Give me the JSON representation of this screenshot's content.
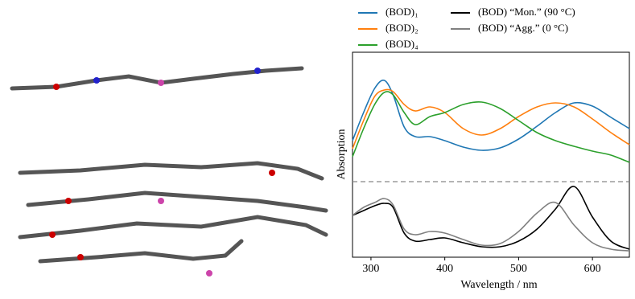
{
  "chart_data": {
    "type": "line",
    "x_label": "Wavelength / nm",
    "y_label": "Absorption",
    "x": [
      275,
      290,
      305,
      318,
      330,
      345,
      360,
      380,
      400,
      425,
      450,
      475,
      500,
      525,
      550,
      575,
      600,
      625,
      650
    ],
    "xlim": [
      275,
      650
    ],
    "xticks": [
      300,
      400,
      500,
      600
    ],
    "ylim": [
      0,
      255
    ],
    "separator": 94,
    "series": [
      {
        "name": "(BOD)₁",
        "color": "#1f77b4",
        "values": [
          145,
          180,
          210,
          220,
          202,
          162,
          150,
          150,
          145,
          137,
          133,
          136,
          147,
          163,
          180,
          192,
          188,
          174,
          160
        ]
      },
      {
        "name": "(BOD)₂",
        "color": "#ff7f0e",
        "values": [
          135,
          170,
          200,
          208,
          206,
          190,
          182,
          187,
          180,
          160,
          152,
          160,
          175,
          187,
          192,
          187,
          172,
          155,
          140
        ]
      },
      {
        "name": "(BOD)₄",
        "color": "#2ca02c",
        "values": [
          125,
          160,
          190,
          205,
          202,
          180,
          165,
          175,
          180,
          190,
          193,
          185,
          170,
          155,
          145,
          138,
          132,
          127,
          118
        ]
      },
      {
        "name": "(BOD) “Mon.” (90 °C)",
        "color": "#000000",
        "values": [
          52,
          58,
          64,
          67,
          62,
          30,
          20,
          22,
          24,
          18,
          13,
          13,
          20,
          35,
          60,
          88,
          50,
          20,
          10
        ]
      },
      {
        "name": "(BOD) “Agg.” (0 °C)",
        "color": "#808080",
        "values": [
          52,
          62,
          68,
          73,
          65,
          35,
          28,
          32,
          30,
          22,
          15,
          17,
          32,
          55,
          68,
          40,
          18,
          10,
          8
        ]
      }
    ]
  }
}
